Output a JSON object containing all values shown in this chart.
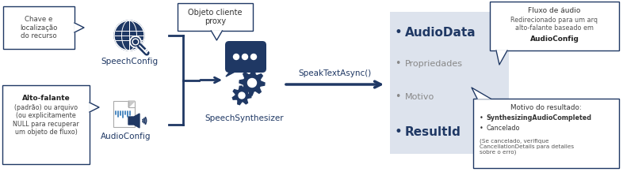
{
  "bg_color": "#ffffff",
  "dark_blue": "#1f3864",
  "medium_blue": "#2e75b6",
  "light_gray_bg": "#dde3ed",
  "left_box1_text": "Chave e\nlocalização\ndo recurso",
  "left_box2_line1": "Alto-falante",
  "left_box2_line2": "(padrão) ou arquivo\n(ou explicitamente\nNULL para recuperar\num objeto de fluxo)",
  "speechconfig_label": "SpeechConfig",
  "audioconfig_label": "AudioConfig",
  "synthesizer_label": "SpeechSynthesizer",
  "method_label": "SpeakTextAsync()",
  "proxy_callout": "Objeto cliente\nproxy",
  "audio_callout_line1": "Fluxo de áudio",
  "audio_callout_line2": "Redirecionado para um arq\nalto-falante baseado em",
  "audio_callout_line3": "AudioConfig",
  "result_callout_title": "Motivo do resultado:",
  "result_callout_item1": "SynthesizingAudioCompleted",
  "result_callout_item2": "Cancelado",
  "result_callout_note": "(Se cancelado, verifique\nCancellationDetails para detalles\nsobre o erro)",
  "result_items": [
    "AudioData",
    "Propriedades",
    "Motivo",
    "ResultId"
  ],
  "result_items_bold": [
    true,
    false,
    false,
    true
  ],
  "result_items_sizes": [
    11,
    8,
    8,
    11
  ]
}
